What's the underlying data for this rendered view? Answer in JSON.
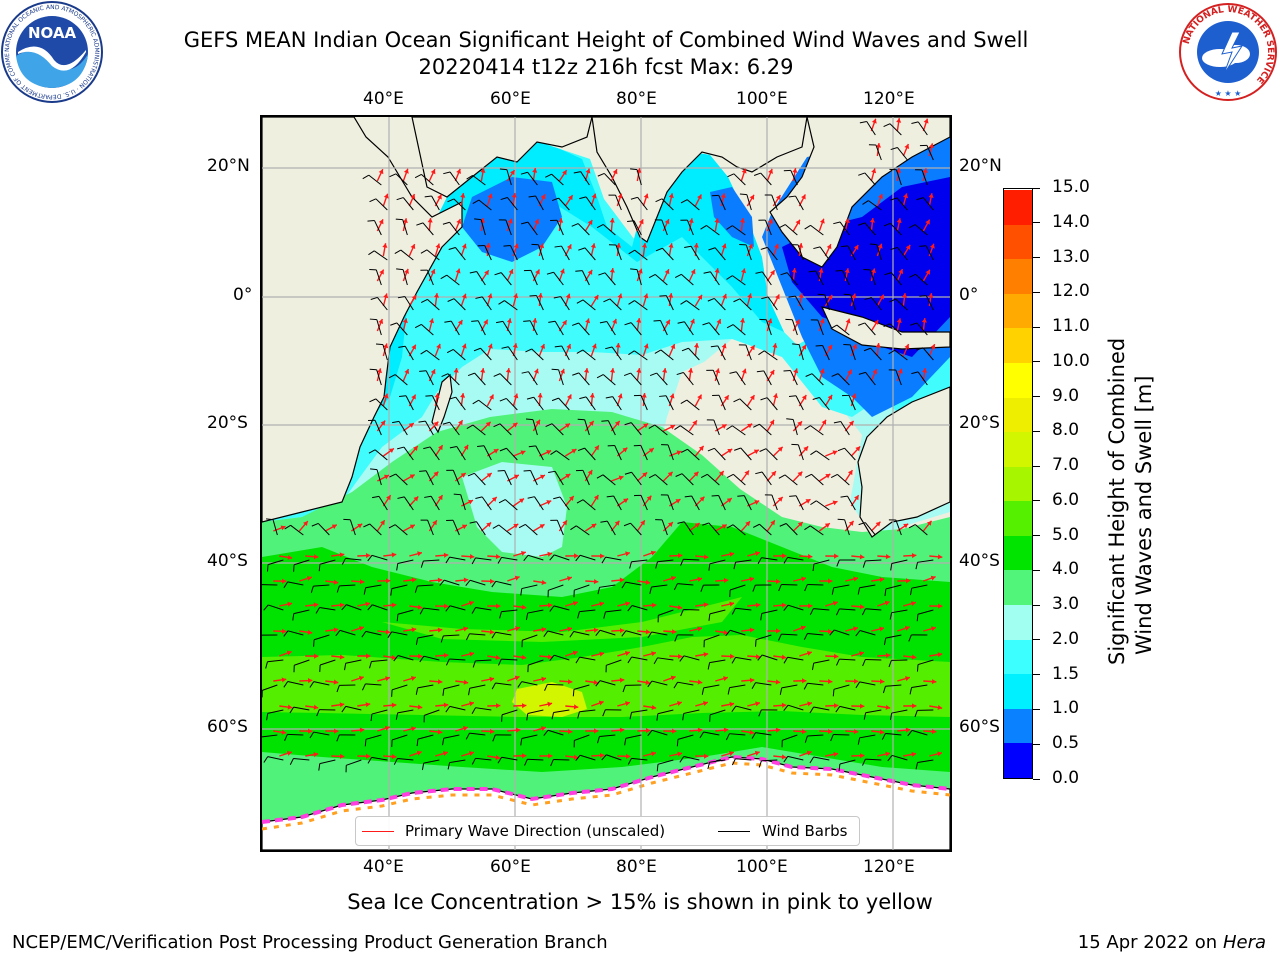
{
  "title": {
    "line1": "GEFS MEAN Indian Ocean Significant Height of Combined Wind Waves and Swell",
    "line2": "20220414 t12z 216h fcst   Max: 6.29"
  },
  "logos": {
    "noaa_text": "NOAA",
    "noaa_ring": "NATIONAL OCEANIC AND ATMOSPHERIC ADMINISTRATION · U.S. DEPARTMENT OF COMMERCE",
    "nws_ring": "NATIONAL WEATHER SERVICE"
  },
  "map": {
    "lon_labels": [
      "40°E",
      "60°E",
      "80°E",
      "100°E",
      "120°E"
    ],
    "lat_labels": [
      "20°N",
      "0°",
      "20°S",
      "40°S",
      "60°S"
    ],
    "gridlines": true,
    "colors": {
      "land": "#efefe0",
      "antarctic_ice": "#ffffff",
      "arrows": "#ff1a1a",
      "barbs": "#000000"
    }
  },
  "colorbar": {
    "title_line1": "Significant Height of Combined",
    "title_line2": "Wind Waves and Swell [m]",
    "tick_labels": [
      "0.0",
      "0.5",
      "1.0",
      "1.5",
      "2.0",
      "3.0",
      "4.0",
      "5.0",
      "6.0",
      "7.0",
      "8.0",
      "9.0",
      "10.0",
      "11.0",
      "12.0",
      "13.0",
      "14.0",
      "15.0"
    ],
    "colors": [
      "#0000ff",
      "#0a82ff",
      "#00f0ff",
      "#3cffff",
      "#a0fff0",
      "#50f57a",
      "#00e400",
      "#54f000",
      "#a8f500",
      "#d2f500",
      "#eeee00",
      "#ffff00",
      "#ffd200",
      "#ffaa00",
      "#ff8000",
      "#ff5000",
      "#ff1e00"
    ]
  },
  "legend": {
    "arrow_label": "Primary Wave Direction (unscaled)",
    "barb_label": "Wind Barbs"
  },
  "caption": "Sea Ice Concentration > 15% is shown in pink to yellow",
  "footer": {
    "left": "NCEP/EMC/Verification Post Processing Product Generation Branch",
    "right_prefix": "15 Apr 2022 on ",
    "right_host": "Hera"
  }
}
